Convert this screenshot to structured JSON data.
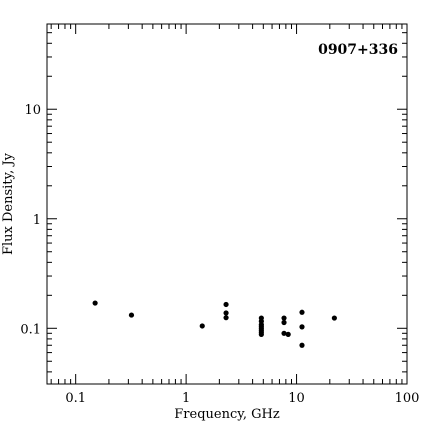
{
  "chart_data": {
    "type": "scatter",
    "title": "0907+336",
    "xlabel": "Frequency, GHz",
    "ylabel": "Flux Density, Jy",
    "xscale": "log",
    "yscale": "log",
    "xlim": [
      0.055,
      100
    ],
    "ylim": [
      0.031,
      60
    ],
    "x_ticks": [
      {
        "value": 0.1,
        "label": "0.1"
      },
      {
        "value": 1,
        "label": "1"
      },
      {
        "value": 10,
        "label": "10"
      },
      {
        "value": 100,
        "label": "100"
      }
    ],
    "y_ticks": [
      {
        "value": 0.1,
        "label": "0.1"
      },
      {
        "value": 1,
        "label": "1"
      },
      {
        "value": 10,
        "label": "10"
      }
    ],
    "points": [
      {
        "x": 0.15,
        "y": 0.17
      },
      {
        "x": 0.32,
        "y": 0.132
      },
      {
        "x": 1.4,
        "y": 0.105
      },
      {
        "x": 2.3,
        "y": 0.165
      },
      {
        "x": 2.3,
        "y": 0.138
      },
      {
        "x": 2.3,
        "y": 0.125
      },
      {
        "x": 4.8,
        "y": 0.124
      },
      {
        "x": 4.8,
        "y": 0.116
      },
      {
        "x": 4.8,
        "y": 0.108
      },
      {
        "x": 4.8,
        "y": 0.104
      },
      {
        "x": 4.8,
        "y": 0.1
      },
      {
        "x": 4.8,
        "y": 0.096
      },
      {
        "x": 4.8,
        "y": 0.092
      },
      {
        "x": 4.8,
        "y": 0.088
      },
      {
        "x": 7.7,
        "y": 0.124
      },
      {
        "x": 7.7,
        "y": 0.113
      },
      {
        "x": 7.7,
        "y": 0.09
      },
      {
        "x": 8.4,
        "y": 0.088
      },
      {
        "x": 11.2,
        "y": 0.14
      },
      {
        "x": 11.2,
        "y": 0.103
      },
      {
        "x": 11.2,
        "y": 0.07
      },
      {
        "x": 22,
        "y": 0.124
      }
    ]
  }
}
